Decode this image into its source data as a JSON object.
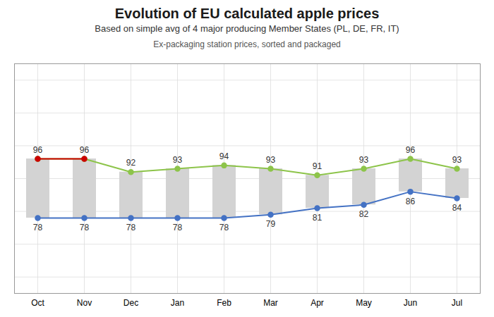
{
  "chart_data": {
    "type": "line",
    "title": "Evolution of EU calculated apple prices",
    "subtitle": [
      "Based on simple avg of 4 major producing Member States (PL, DE, FR, IT)",
      "Ex-packaging station prices, sorted and packaged"
    ],
    "categories": [
      "Oct",
      "Nov",
      "Dec",
      "Jan",
      "Feb",
      "Mar",
      "Apr",
      "May",
      "Jun",
      "Jul"
    ],
    "series": [
      {
        "color": "#8dc44a",
        "marker": "circle",
        "data_labels": true,
        "values": [
          96,
          96,
          92,
          93,
          94,
          93,
          91,
          93,
          96,
          93
        ]
      },
      {
        "color": "#4472c4",
        "marker": "circle",
        "data_labels": true,
        "values": [
          78,
          78,
          78,
          78,
          78,
          79,
          81,
          82,
          86,
          84
        ]
      },
      {
        "color": "#cc0000",
        "marker": "circle",
        "values": [
          96,
          96,
          null,
          null,
          null,
          null,
          null,
          null,
          null,
          null
        ]
      }
    ],
    "color": "#d3d3d3",
    "ylim": [
      55,
      125
    ],
    "yticks": [
      60,
      70,
      80,
      90,
      100,
      110,
      120
    ],
    "grid": true,
    "tick_labels": "x"
  }
}
